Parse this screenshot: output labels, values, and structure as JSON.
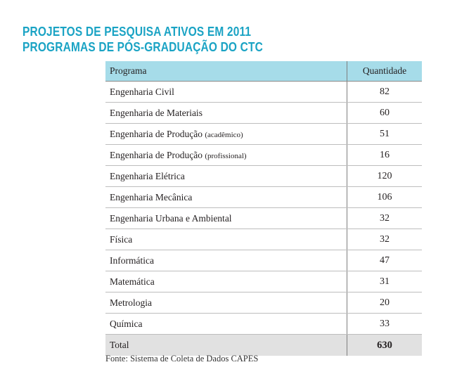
{
  "title": {
    "line1": "PROJETOS DE PESQUISA ATIVOS EM 2011",
    "line2": "PROGRAMAS DE PÓS-GRADUAÇÃO DO CTC"
  },
  "table": {
    "header": {
      "program": "Programa",
      "quantity": "Quantidade"
    },
    "rows": [
      {
        "program": "Engenharia Civil",
        "qualifier": "",
        "quantity": "82"
      },
      {
        "program": "Engenharia de Materiais",
        "qualifier": "",
        "quantity": "60"
      },
      {
        "program": "Engenharia de Produção",
        "qualifier": "(acadêmico)",
        "quantity": "51"
      },
      {
        "program": "Engenharia de Produção",
        "qualifier": "(profissional)",
        "quantity": "16"
      },
      {
        "program": "Engenharia Elétrica",
        "qualifier": "",
        "quantity": "120"
      },
      {
        "program": "Engenharia Mecânica",
        "qualifier": "",
        "quantity": "106"
      },
      {
        "program": "Engenharia Urbana e Ambiental",
        "qualifier": "",
        "quantity": "32"
      },
      {
        "program": "Física",
        "qualifier": "",
        "quantity": "32"
      },
      {
        "program": "Informática",
        "qualifier": "",
        "quantity": "47"
      },
      {
        "program": "Matemática",
        "qualifier": "",
        "quantity": "31"
      },
      {
        "program": "Metrologia",
        "qualifier": "",
        "quantity": "20"
      },
      {
        "program": "Química",
        "qualifier": "",
        "quantity": "33"
      }
    ],
    "total": {
      "label": "Total",
      "quantity": "630"
    }
  },
  "source": "Fonte: Sistema de Coleta de Dados CAPES",
  "colors": {
    "title": "#1aa3c4",
    "header_bg": "#a6dce9",
    "total_bg": "#e1e1e1"
  }
}
